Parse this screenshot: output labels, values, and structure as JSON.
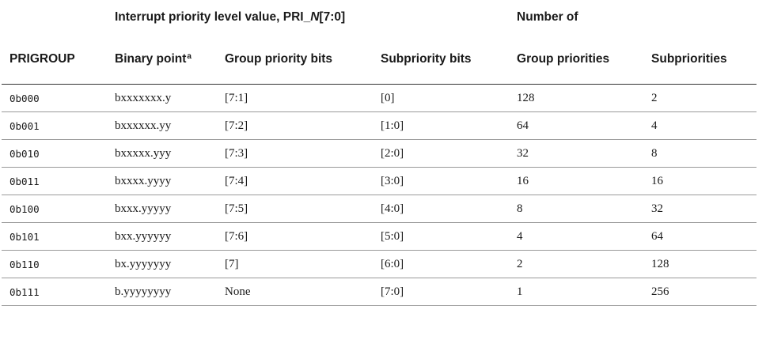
{
  "header_row1": {
    "group_prefix": "Interrupt priority level value, PRI_",
    "group_var": "N",
    "group_suffix": "[7:0]",
    "number_of": "Number of"
  },
  "header_row2": {
    "prigroup": "PRIGROUP",
    "binary_point": "Binary point",
    "binary_point_footnote": "a",
    "group_priority_bits": "Group priority bits",
    "subpriority_bits": "Subpriority bits",
    "group_priorities": "Group priorities",
    "subpriorities": "Subpriorities"
  },
  "rows": [
    {
      "prigroup": "0b000",
      "binary_point": "bxxxxxxx.y",
      "group_bits": "[7:1]",
      "sub_bits": "[0]",
      "group_priorities": "128",
      "subpriorities": "2"
    },
    {
      "prigroup": "0b001",
      "binary_point": "bxxxxxx.yy",
      "group_bits": "[7:2]",
      "sub_bits": "[1:0]",
      "group_priorities": "64",
      "subpriorities": "4"
    },
    {
      "prigroup": "0b010",
      "binary_point": "bxxxxx.yyy",
      "group_bits": "[7:3]",
      "sub_bits": "[2:0]",
      "group_priorities": "32",
      "subpriorities": "8"
    },
    {
      "prigroup": "0b011",
      "binary_point": "bxxxx.yyyy",
      "group_bits": "[7:4]",
      "sub_bits": "[3:0]",
      "group_priorities": "16",
      "subpriorities": "16"
    },
    {
      "prigroup": "0b100",
      "binary_point": "bxxx.yyyyy",
      "group_bits": "[7:5]",
      "sub_bits": "[4:0]",
      "group_priorities": "8",
      "subpriorities": "32"
    },
    {
      "prigroup": "0b101",
      "binary_point": "bxx.yyyyyy",
      "group_bits": "[7:6]",
      "sub_bits": "[5:0]",
      "group_priorities": "4",
      "subpriorities": "64"
    },
    {
      "prigroup": "0b110",
      "binary_point": "bx.yyyyyyy",
      "group_bits": "[7]",
      "sub_bits": "[6:0]",
      "group_priorities": "2",
      "subpriorities": "128"
    },
    {
      "prigroup": "0b111",
      "binary_point": "b.yyyyyyyy",
      "group_bits": "None",
      "sub_bits": "[7:0]",
      "group_priorities": "1",
      "subpriorities": "256"
    }
  ]
}
